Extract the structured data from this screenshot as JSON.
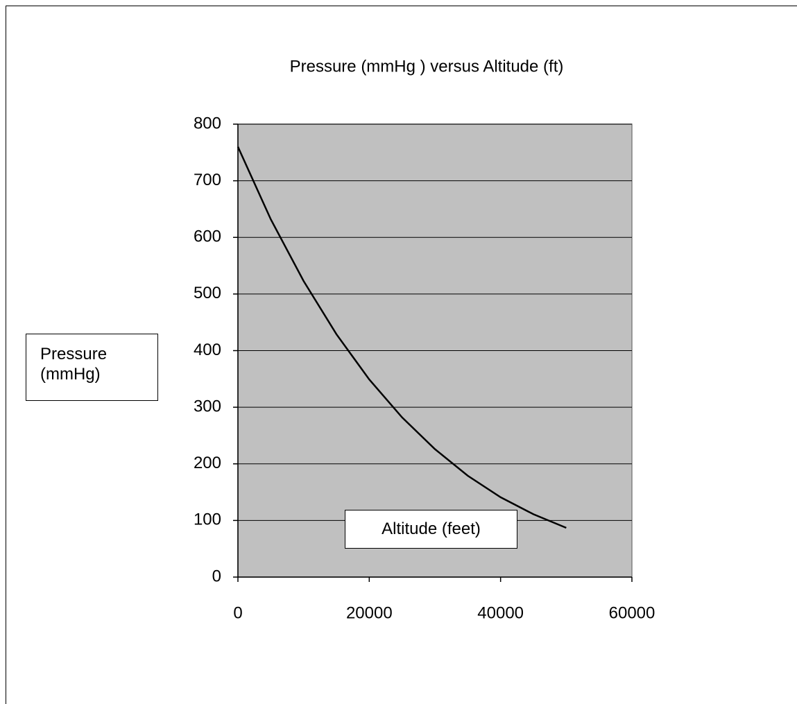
{
  "chart_data": {
    "type": "line",
    "title": "Pressure (mmHg ) versus  Altitude (ft)",
    "xlabel": "Altitude (feet)",
    "ylabel": "Pressure (mmHg)",
    "x": [
      0,
      5000,
      10000,
      15000,
      20000,
      25000,
      30000,
      35000,
      40000,
      45000,
      50000
    ],
    "values": [
      760,
      632,
      523,
      429,
      349,
      282,
      226,
      179,
      141,
      111,
      87
    ],
    "color": "#000000",
    "xlim": [
      0,
      60000
    ],
    "xticks": [
      0,
      20000,
      40000,
      60000
    ],
    "ylim": [
      0,
      800
    ],
    "yticks": [
      0,
      100,
      200,
      300,
      400,
      500,
      600,
      700,
      800
    ],
    "grid": true
  }
}
